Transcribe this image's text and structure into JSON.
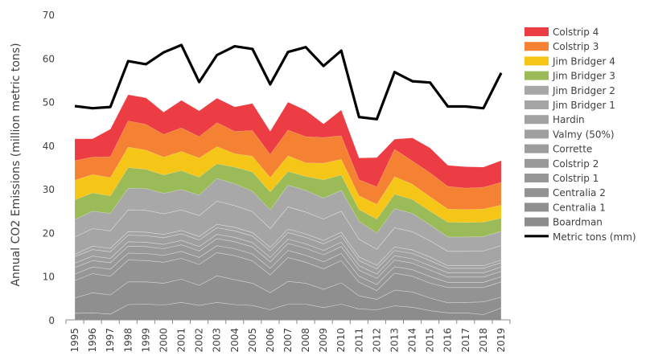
{
  "chart_data": {
    "type": "area",
    "stacked": true,
    "xlabel": "",
    "ylabel": "Annual CO2 Emissions (million metric tons)",
    "ylim": [
      0,
      70
    ],
    "yticks": [
      0,
      10,
      20,
      30,
      40,
      50,
      60,
      70
    ],
    "grid": false,
    "legend_position": "right",
    "categories": [
      "1995",
      "1996",
      "1997",
      "1998",
      "1999",
      "2000",
      "2001",
      "2002",
      "2003",
      "2004",
      "2005",
      "2006",
      "2007",
      "2008",
      "2009",
      "2010",
      "2011",
      "2012",
      "2013",
      "2014",
      "2015",
      "2016",
      "2017",
      "2018",
      "2019"
    ],
    "series": [
      {
        "name": "Boardman",
        "color": "#8c8c8c",
        "values": [
          1.5,
          1.6,
          1.3,
          3.5,
          3.6,
          3.4,
          4.0,
          3.3,
          4.0,
          3.5,
          3.3,
          2.3,
          3.6,
          3.6,
          2.8,
          3.6,
          2.5,
          2.3,
          3.2,
          2.9,
          2.1,
          1.6,
          1.6,
          1.2,
          2.7
        ]
      },
      {
        "name": "Centralia 1",
        "color": "#8f8f8f",
        "values": [
          3.5,
          4.6,
          4.4,
          5.2,
          5.1,
          5.0,
          5.3,
          4.6,
          6.1,
          5.7,
          5.1,
          3.9,
          5.2,
          4.8,
          4.2,
          4.9,
          3.0,
          2.4,
          3.6,
          3.5,
          2.9,
          2.3,
          2.4,
          2.9,
          2.5
        ]
      },
      {
        "name": "Centralia 2",
        "color": "#939393",
        "values": [
          4.0,
          4.4,
          4.3,
          5.0,
          4.9,
          4.8,
          4.8,
          4.8,
          5.3,
          5.5,
          5.1,
          4.1,
          5.5,
          4.8,
          4.7,
          5.1,
          3.1,
          2.0,
          3.9,
          3.6,
          3.4,
          3.5,
          3.4,
          3.3,
          3.5
        ]
      },
      {
        "name": "Colstrip 1",
        "color": "#969696",
        "values": [
          1.5,
          1.5,
          1.6,
          1.6,
          1.6,
          1.6,
          1.6,
          1.6,
          1.6,
          1.6,
          1.6,
          1.5,
          1.6,
          1.6,
          1.6,
          1.6,
          1.4,
          1.4,
          1.5,
          1.5,
          1.5,
          1.2,
          1.2,
          1.2,
          1.2
        ]
      },
      {
        "name": "Colstrip 2",
        "color": "#999999",
        "values": [
          1.5,
          1.5,
          1.5,
          1.6,
          1.6,
          1.5,
          1.5,
          1.5,
          1.6,
          1.6,
          1.6,
          1.5,
          1.6,
          1.6,
          1.6,
          1.6,
          1.4,
          1.4,
          1.5,
          1.5,
          1.5,
          1.2,
          1.2,
          1.2,
          1.2
        ]
      },
      {
        "name": "Corrette",
        "color": "#9c9c9c",
        "values": [
          1.0,
          1.0,
          1.0,
          1.0,
          1.0,
          1.0,
          1.0,
          1.0,
          1.0,
          1.0,
          1.0,
          1.0,
          1.0,
          1.0,
          1.0,
          1.0,
          1.0,
          1.0,
          1.0,
          1.0,
          1.0,
          1.0,
          1.0,
          1.0,
          1.0
        ]
      },
      {
        "name": "Valmy (50%)",
        "color": "#9f9f9f",
        "values": [
          1.5,
          1.5,
          1.5,
          1.5,
          1.5,
          1.5,
          1.5,
          1.5,
          1.5,
          1.5,
          1.5,
          1.5,
          1.5,
          1.5,
          1.5,
          1.5,
          1.2,
          1.2,
          1.2,
          1.2,
          1.2,
          1.0,
          1.0,
          1.0,
          1.0
        ]
      },
      {
        "name": "Hardin",
        "color": "#a2a2a2",
        "values": [
          0.5,
          0.8,
          0.8,
          0.8,
          0.8,
          0.8,
          0.8,
          0.8,
          0.8,
          0.8,
          0.8,
          0.8,
          0.8,
          0.8,
          0.8,
          0.8,
          0.8,
          0.8,
          0.8,
          0.8,
          0.8,
          0.6,
          0.6,
          0.6,
          0.6
        ]
      },
      {
        "name": "Jim Bridger 1",
        "color": "#a5a5a5",
        "values": [
          4.0,
          4.0,
          4.0,
          5.0,
          5.0,
          4.7,
          4.7,
          4.8,
          5.3,
          5.0,
          4.8,
          4.3,
          5.1,
          5.0,
          4.9,
          4.8,
          4.1,
          3.7,
          4.4,
          4.2,
          3.7,
          3.3,
          3.3,
          3.4,
          3.3
        ]
      },
      {
        "name": "Jim Bridger 2",
        "color": "#a8a8a8",
        "values": [
          4.0,
          4.0,
          4.0,
          5.0,
          5.0,
          4.7,
          4.7,
          4.7,
          5.2,
          5.0,
          4.7,
          4.3,
          5.0,
          5.0,
          4.8,
          4.8,
          4.1,
          3.7,
          4.4,
          4.2,
          3.7,
          3.3,
          3.3,
          3.3,
          3.3
        ]
      },
      {
        "name": "Jim Bridger 3",
        "color": "#9bbb59",
        "values": [
          4.5,
          4.2,
          4.0,
          4.7,
          4.4,
          4.2,
          4.3,
          4.1,
          3.4,
          3.8,
          4.4,
          4.1,
          3.1,
          3.2,
          4.2,
          3.5,
          2.7,
          3.2,
          3.3,
          3.2,
          3.1,
          3.4,
          3.3,
          3.3,
          3.0
        ]
      },
      {
        "name": "Jim Bridger 4",
        "color": "#f5c518",
        "values": [
          4.5,
          4.2,
          4.2,
          4.7,
          4.4,
          4.1,
          4.4,
          4.4,
          3.9,
          3.1,
          3.6,
          3.3,
          3.6,
          3.1,
          3.8,
          3.6,
          3.1,
          3.4,
          4.0,
          3.5,
          3.3,
          3.0,
          3.0,
          3.0,
          3.0
        ]
      },
      {
        "name": "Colstrip 3",
        "color": "#f58232",
        "values": [
          4.5,
          4.0,
          4.8,
          6.0,
          5.9,
          5.2,
          5.4,
          4.9,
          5.5,
          5.1,
          5.9,
          5.3,
          5.9,
          6.0,
          5.9,
          5.4,
          3.7,
          4.0,
          6.3,
          5.3,
          5.5,
          5.2,
          4.9,
          5.0,
          5.2
        ]
      },
      {
        "name": "Colstrip 4",
        "color": "#ec3d44",
        "values": [
          5.0,
          4.2,
          6.3,
          6.0,
          6.1,
          5.1,
          6.3,
          5.9,
          5.6,
          5.6,
          6.2,
          5.3,
          6.4,
          6.0,
          3.1,
          5.9,
          5.0,
          6.7,
          2.3,
          5.3,
          5.7,
          4.8,
          4.9,
          4.6,
          5.0
        ]
      }
    ],
    "line_series": {
      "name": "Metric tons (mm)",
      "color": "#000000",
      "values": [
        49.0,
        48.5,
        48.8,
        59.3,
        58.6,
        61.3,
        63.0,
        54.5,
        60.7,
        62.7,
        62.1,
        54.0,
        61.4,
        62.5,
        58.2,
        61.7,
        46.5,
        46.0,
        56.8,
        54.7,
        54.4,
        48.9,
        48.9,
        48.5,
        56.6
      ]
    }
  }
}
